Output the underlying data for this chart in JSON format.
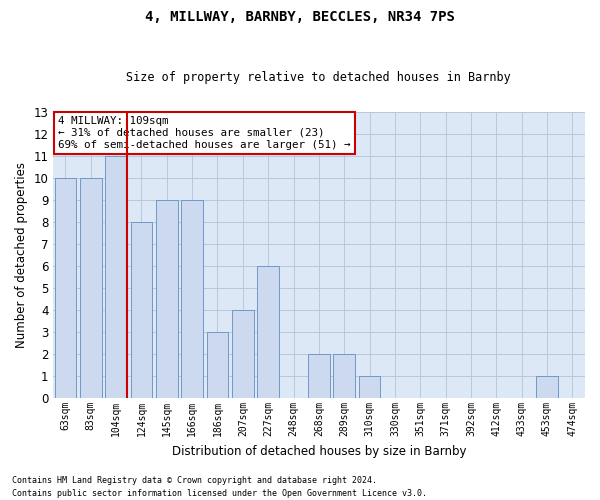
{
  "title": "4, MILLWAY, BARNBY, BECCLES, NR34 7PS",
  "subtitle": "Size of property relative to detached houses in Barnby",
  "xlabel": "Distribution of detached houses by size in Barnby",
  "ylabel": "Number of detached properties",
  "categories": [
    "63sqm",
    "83sqm",
    "104sqm",
    "124sqm",
    "145sqm",
    "166sqm",
    "186sqm",
    "207sqm",
    "227sqm",
    "248sqm",
    "268sqm",
    "289sqm",
    "310sqm",
    "330sqm",
    "351sqm",
    "371sqm",
    "392sqm",
    "412sqm",
    "433sqm",
    "453sqm",
    "474sqm"
  ],
  "values": [
    10,
    10,
    11,
    8,
    9,
    9,
    3,
    4,
    6,
    0,
    2,
    2,
    1,
    0,
    0,
    0,
    0,
    0,
    0,
    1,
    0
  ],
  "bar_color": "#ccd9ee",
  "bar_edge_color": "#7098c8",
  "marker_index": 2,
  "marker_color": "#cc0000",
  "ylim": [
    0,
    13
  ],
  "yticks": [
    0,
    1,
    2,
    3,
    4,
    5,
    6,
    7,
    8,
    9,
    10,
    11,
    12,
    13
  ],
  "annotation_title": "4 MILLWAY: 109sqm",
  "annotation_line1": "← 31% of detached houses are smaller (23)",
  "annotation_line2": "69% of semi-detached houses are larger (51) →",
  "annotation_box_color": "#ffffff",
  "annotation_box_edge": "#cc0000",
  "footer_line1": "Contains HM Land Registry data © Crown copyright and database right 2024.",
  "footer_line2": "Contains public sector information licensed under the Open Government Licence v3.0.",
  "background_color": "#ffffff",
  "grid_color": "#b8c8dc",
  "ax_bg_color": "#dce8f5"
}
